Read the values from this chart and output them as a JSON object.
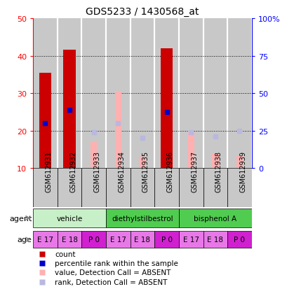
{
  "title": "GDS5233 / 1430568_at",
  "samples": [
    "GSM612931",
    "GSM612932",
    "GSM612933",
    "GSM612934",
    "GSM612935",
    "GSM612936",
    "GSM612937",
    "GSM612938",
    "GSM612939"
  ],
  "count_values": [
    35.5,
    41.5,
    null,
    null,
    null,
    42.0,
    null,
    null,
    null
  ],
  "percentile_values": [
    22.0,
    25.5,
    null,
    null,
    null,
    25.0,
    null,
    null,
    null
  ],
  "absent_value_values": [
    null,
    null,
    17.0,
    30.5,
    13.0,
    null,
    19.5,
    14.0,
    13.5
  ],
  "absent_rank_values": [
    null,
    null,
    19.5,
    22.0,
    18.0,
    null,
    19.5,
    18.5,
    20.0
  ],
  "ylim_left": [
    10,
    50
  ],
  "ylim_right": [
    0,
    100
  ],
  "yticks_left": [
    10,
    20,
    30,
    40,
    50
  ],
  "yticks_right": [
    0,
    25,
    50,
    75,
    100
  ],
  "ytick_labels_left": [
    "10",
    "20",
    "30",
    "40",
    "50"
  ],
  "ytick_labels_right": [
    "0",
    "25",
    "50",
    "75",
    "100%"
  ],
  "agent_groups": [
    {
      "label": "vehicle",
      "start": 0,
      "end": 3,
      "color": "#c8f0c8"
    },
    {
      "label": "diethylstilbestrol",
      "start": 3,
      "end": 6,
      "color": "#50cc50"
    },
    {
      "label": "bisphenol A",
      "start": 6,
      "end": 9,
      "color": "#50cc50"
    }
  ],
  "age_colors": [
    "#e878e8",
    "#e878e8",
    "#d020d0",
    "#e878e8",
    "#e878e8",
    "#d020d0",
    "#e878e8",
    "#e878e8",
    "#d020d0"
  ],
  "age_labels": [
    "E 17",
    "E 18",
    "P 0",
    "E 17",
    "E 18",
    "P 0",
    "E 17",
    "E 18",
    "P 0"
  ],
  "color_count": "#cc0000",
  "color_percentile": "#0000cc",
  "color_absent_value": "#ffb0b0",
  "color_absent_rank": "#b8b8e0",
  "bar_width": 0.5,
  "marker_size": 5,
  "sample_bg_color": "#c8c8c8",
  "plot_bg_color": "#ffffff"
}
